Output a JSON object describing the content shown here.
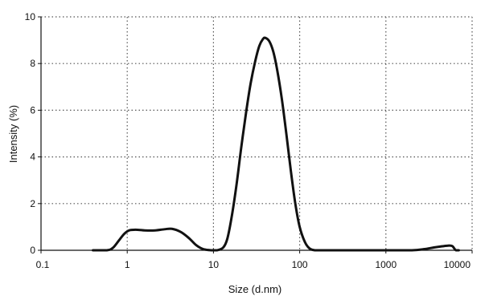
{
  "chart_data": {
    "type": "line",
    "title": "",
    "xlabel": "Size (d.nm)",
    "ylabel": "Intensity (%)",
    "x_scale": "log",
    "xlim": [
      0.1,
      10000
    ],
    "ylim": [
      0,
      10
    ],
    "grid": true,
    "x_ticks": [
      0.1,
      1,
      10,
      100,
      1000,
      10000
    ],
    "x_tick_labels": [
      "0.1",
      "1",
      "10",
      "100",
      "1000",
      "10000"
    ],
    "y_ticks": [
      0,
      2,
      4,
      6,
      8,
      10
    ],
    "y_tick_labels": [
      "0",
      "2",
      "4",
      "6",
      "8",
      "10"
    ],
    "series": [
      {
        "color": "#111111",
        "points": [
          [
            0.4,
            0
          ],
          [
            0.58,
            0
          ],
          [
            0.68,
            0.1
          ],
          [
            0.8,
            0.42
          ],
          [
            0.92,
            0.7
          ],
          [
            1.05,
            0.85
          ],
          [
            1.25,
            0.88
          ],
          [
            1.6,
            0.85
          ],
          [
            2.1,
            0.85
          ],
          [
            2.7,
            0.9
          ],
          [
            3.3,
            0.92
          ],
          [
            4.2,
            0.78
          ],
          [
            5.2,
            0.52
          ],
          [
            6.3,
            0.22
          ],
          [
            7.6,
            0.05
          ],
          [
            9.5,
            0
          ],
          [
            11,
            0
          ],
          [
            13,
            0.12
          ],
          [
            14.5,
            0.5
          ],
          [
            16.3,
            1.45
          ],
          [
            18.5,
            2.8
          ],
          [
            21,
            4.4
          ],
          [
            24,
            5.95
          ],
          [
            27,
            7.15
          ],
          [
            30.5,
            8.1
          ],
          [
            34,
            8.75
          ],
          [
            37.5,
            9.05
          ],
          [
            40,
            9.1
          ],
          [
            44.5,
            8.95
          ],
          [
            49.5,
            8.5
          ],
          [
            55,
            7.7
          ],
          [
            62,
            6.5
          ],
          [
            70,
            5.0
          ],
          [
            79,
            3.4
          ],
          [
            89,
            2.0
          ],
          [
            100,
            1.0
          ],
          [
            115,
            0.35
          ],
          [
            130,
            0.08
          ],
          [
            150,
            0
          ],
          [
            190,
            0
          ],
          [
            1000,
            0
          ],
          [
            2000,
            0
          ],
          [
            2800,
            0.05
          ],
          [
            3600,
            0.12
          ],
          [
            4500,
            0.17
          ],
          [
            5400,
            0.2
          ],
          [
            5900,
            0.18
          ],
          [
            6200,
            0.08
          ],
          [
            6500,
            0
          ],
          [
            7000,
            0
          ]
        ]
      }
    ]
  }
}
